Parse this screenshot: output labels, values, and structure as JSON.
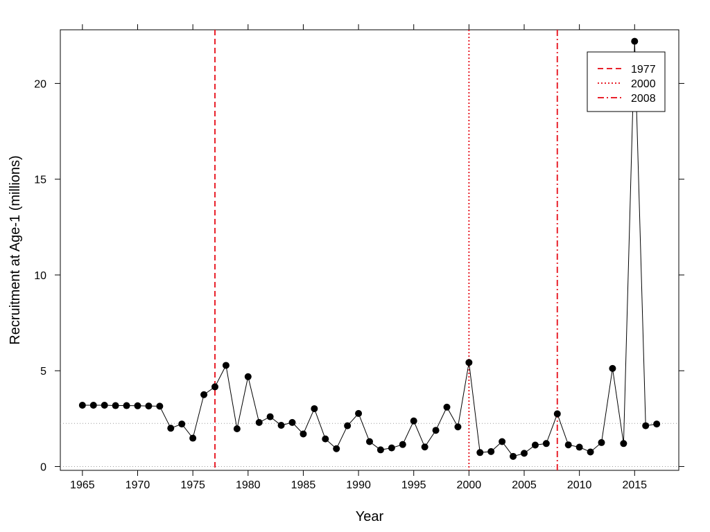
{
  "chart_data": {
    "type": "line",
    "xlabel": "Year",
    "ylabel": "Recruitment at Age-1 (millions)",
    "xlim": [
      1963,
      2019
    ],
    "ylim": [
      -0.2,
      22.8
    ],
    "x_ticks": [
      1965,
      1970,
      1975,
      1980,
      1985,
      1990,
      1995,
      2000,
      2005,
      2010,
      2015
    ],
    "y_ticks": [
      0,
      5,
      10,
      15,
      20
    ],
    "grid": false,
    "series": [
      {
        "type": "line+points",
        "color": "#000000",
        "x": [
          1965,
          1966,
          1967,
          1968,
          1969,
          1970,
          1971,
          1972,
          1973,
          1974,
          1975,
          1976,
          1977,
          1978,
          1979,
          1980,
          1981,
          1982,
          1983,
          1984,
          1985,
          1986,
          1987,
          1988,
          1989,
          1990,
          1991,
          1992,
          1993,
          1994,
          1995,
          1996,
          1997,
          1998,
          1999,
          2000,
          2001,
          2002,
          2003,
          2004,
          2005,
          2006,
          2007,
          2008,
          2009,
          2010,
          2011,
          2012,
          2013,
          2014,
          2015,
          2016,
          2017
        ],
        "y": [
          3.2,
          3.2,
          3.2,
          3.18,
          3.18,
          3.17,
          3.16,
          3.15,
          2.0,
          2.22,
          1.48,
          3.75,
          4.16,
          5.28,
          1.97,
          4.69,
          2.3,
          2.6,
          2.15,
          2.3,
          1.7,
          3.02,
          1.44,
          0.93,
          2.13,
          2.77,
          1.3,
          0.87,
          0.97,
          1.15,
          2.38,
          1.02,
          1.89,
          3.1,
          2.07,
          5.43,
          0.73,
          0.78,
          1.3,
          0.53,
          0.69,
          1.12,
          1.2,
          2.75,
          1.13,
          1.01,
          0.76,
          1.25,
          5.12,
          1.2,
          22.2,
          2.13,
          2.22
        ]
      }
    ],
    "reference_lines": [
      {
        "type": "horizontal",
        "y": 2.25,
        "style": "dotted",
        "color": "#999999"
      },
      {
        "type": "horizontal",
        "y": 0,
        "style": "dotted",
        "color": "#999999"
      }
    ],
    "regime_lines": [
      {
        "label": "1977",
        "x": 1977,
        "style": "dashed",
        "color": "#e8202a"
      },
      {
        "label": "2000",
        "x": 2000,
        "style": "dotted",
        "color": "#e8202a"
      },
      {
        "label": "2008",
        "x": 2008,
        "style": "dashdot",
        "color": "#e8202a"
      }
    ],
    "legend": {
      "placement": "top-right",
      "entries": [
        "1977",
        "2000",
        "2008"
      ]
    }
  }
}
